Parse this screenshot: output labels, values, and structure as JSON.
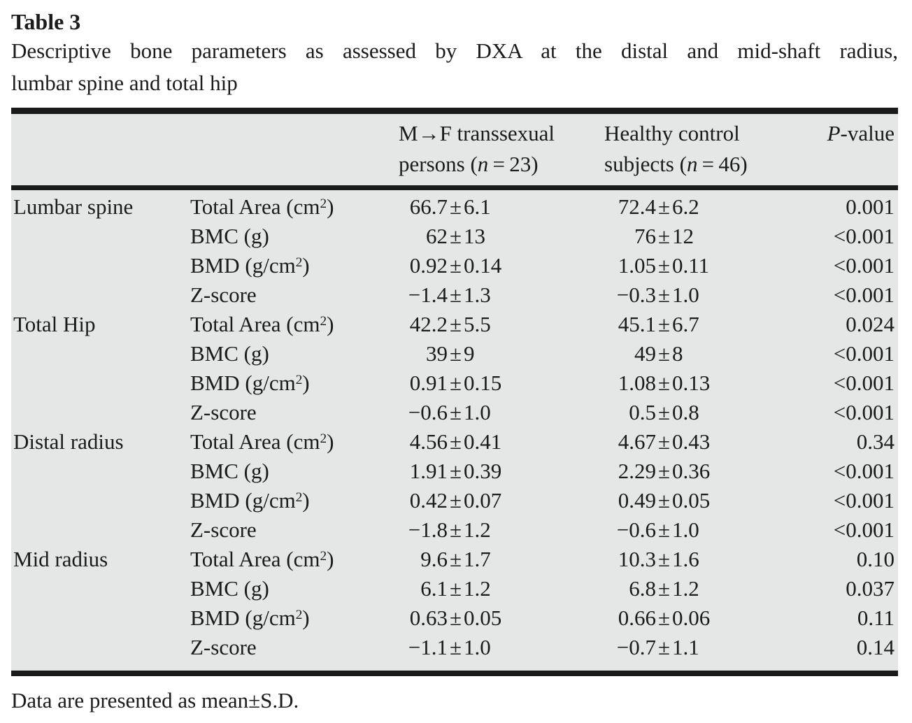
{
  "colors": {
    "table_bg": "#e5e6e6",
    "rule_color": "#1a1a1a",
    "text_color": "#1b1b1b"
  },
  "title": "Table 3",
  "caption_lines": [
    "Descriptive bone parameters as assessed by DXA at the distal and mid-shaft radius,",
    "lumbar spine and total hip"
  ],
  "header": {
    "col_site": "",
    "col_parameter": "",
    "col_mf_line1": "M→F transsexual",
    "col_mf_line2": "persons (*n* = 23)",
    "col_control_line1": "Healthy control",
    "col_control_line2": "subjects (*n* = 46)",
    "col_pvalue": "*P*-value"
  },
  "sections": [
    {
      "site": "Lumbar spine",
      "rows": [
        {
          "parameter": "Total Area (cm^2)",
          "mf": "66.7±6.1",
          "control": "72.4±6.2",
          "p": "0.001"
        },
        {
          "parameter": "BMC (g)",
          "mf": "62±13",
          "control": "76±12",
          "p": "<0.001"
        },
        {
          "parameter": "BMD (g/cm^2)",
          "mf": "0.92±0.14",
          "control": "1.05±0.11",
          "p": "<0.001"
        },
        {
          "parameter": "Z-score",
          "mf": "−1.4±1.3",
          "control": "−0.3±1.0",
          "p": "<0.001"
        }
      ]
    },
    {
      "site": "Total Hip",
      "rows": [
        {
          "parameter": "Total Area (cm^2)",
          "mf": "42.2±5.5",
          "control": "45.1±6.7",
          "p": "0.024"
        },
        {
          "parameter": "BMC (g)",
          "mf": "39±9",
          "control": "49±8",
          "p": "<0.001"
        },
        {
          "parameter": "BMD (g/cm^2)",
          "mf": "0.91±0.15",
          "control": "1.08±0.13",
          "p": "<0.001"
        },
        {
          "parameter": "Z-score",
          "mf": "−0.6±1.0",
          "control": "0.5±0.8",
          "p": "<0.001"
        }
      ]
    },
    {
      "site": "Distal radius",
      "rows": [
        {
          "parameter": "Total Area (cm^2)",
          "mf": "4.56±0.41",
          "control": "4.67±0.43",
          "p": "0.34"
        },
        {
          "parameter": "BMC (g)",
          "mf": "1.91±0.39",
          "control": "2.29±0.36",
          "p": "<0.001"
        },
        {
          "parameter": "BMD (g/cm^2)",
          "mf": "0.42±0.07",
          "control": "0.49±0.05",
          "p": "<0.001"
        },
        {
          "parameter": "Z-score",
          "mf": "−1.8±1.2",
          "control": "−0.6±1.0",
          "p": "<0.001"
        }
      ]
    },
    {
      "site": "Mid radius",
      "rows": [
        {
          "parameter": "Total Area (cm^2)",
          "mf": "9.6±1.7",
          "control": "10.3±1.6",
          "p": "0.10"
        },
        {
          "parameter": "BMC (g)",
          "mf": "6.1±1.2",
          "control": "6.8±1.2",
          "p": "0.037"
        },
        {
          "parameter": "BMD (g/cm^2)",
          "mf": "0.63±0.05",
          "control": "0.66±0.06",
          "p": "0.11"
        },
        {
          "parameter": "Z-score",
          "mf": "−1.1±1.0",
          "control": "−0.7±1.1",
          "p": "0.14"
        }
      ]
    }
  ],
  "footnote": "Data are presented as mean±S.D."
}
